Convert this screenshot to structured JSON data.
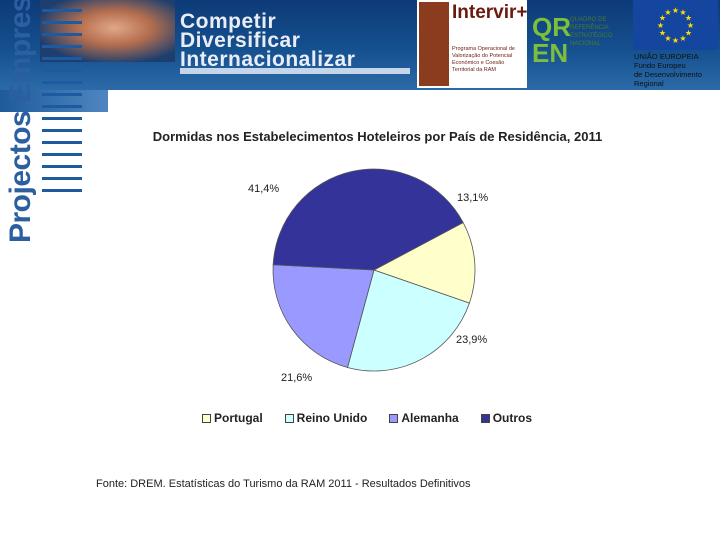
{
  "header": {
    "brand_lines": [
      "Competir",
      "Diversificar",
      "Internacionalizar"
    ],
    "intervir_name": "Intervir+",
    "intervir_subtitle": "Programa Operacional de Valorização do Potencial Económico e Coesão Territorial da RAM",
    "qren_letters": "QR EN",
    "qren_text": "QUADRO DE REFERÊNCIA ESTRATÉGICO NACIONAL",
    "eu_lines": [
      "UNIÃO EUROPEIA",
      "Fundo Europeu",
      "de Desenvolvimento",
      "Regional"
    ],
    "side_title": "Projectos Empresariais"
  },
  "colors": {
    "banner": "#15508f",
    "Portugal": "#ffffcc",
    "Reino Unido": "#ccffff",
    "Alemanha": "#9999ff",
    "Outros": "#333399"
  },
  "chart_data": {
    "type": "pie",
    "title": "Dormidas nos Estabelecimentos Hoteleiros por País de Residência, 2011",
    "categories": [
      "Portugal",
      "Reino Unido",
      "Alemanha",
      "Outros"
    ],
    "values": [
      13.1,
      23.9,
      21.6,
      41.4
    ],
    "value_labels": [
      "13,1%",
      "23,9%",
      "21,6%",
      "41,4%"
    ],
    "legend_position": "bottom"
  },
  "source": "Fonte: DREM. Estatísticas do Turismo da RAM 2011 - Resultados Definitivos"
}
